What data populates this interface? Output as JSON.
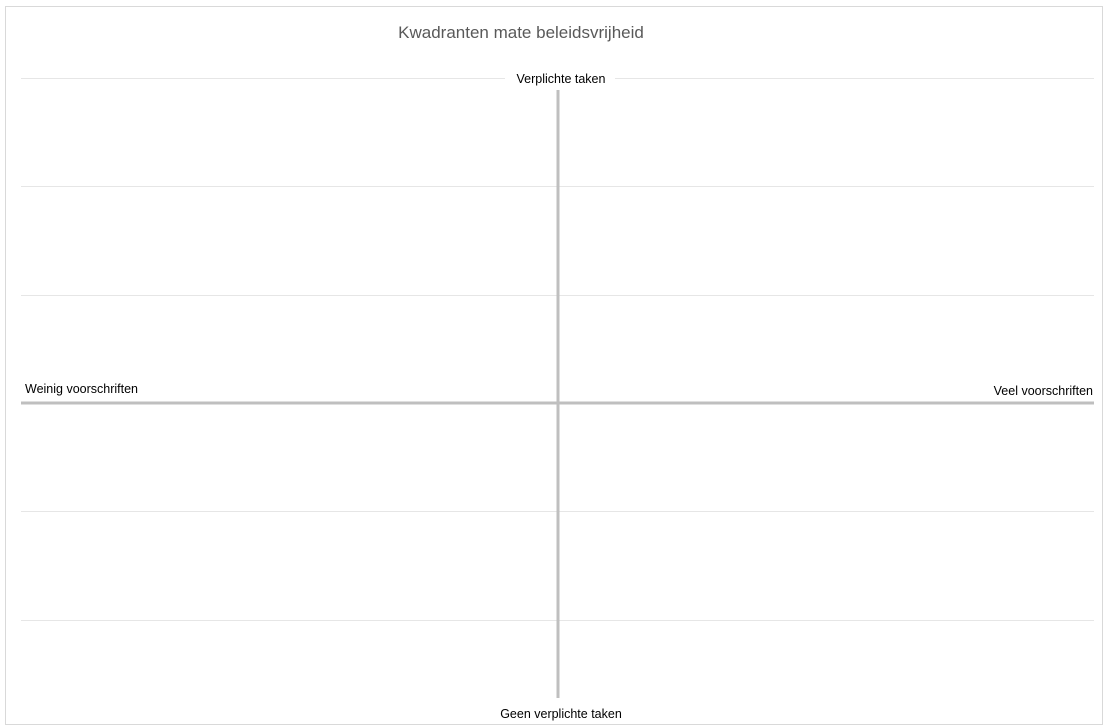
{
  "chart_data": {
    "type": "scatter",
    "title": "Kwadranten mate beleidsvrijheid",
    "labels": {
      "top": "Verplichte taken",
      "bottom": "Geen verplichte taken",
      "left": "Weinig voorschriften",
      "right": "Veel voorschriften"
    },
    "xlim": [
      -1,
      1
    ],
    "ylim": [
      -1,
      1
    ],
    "grid": true,
    "series": [],
    "colors": {
      "gridline": "#e6e6e6",
      "axis": "#bfbfbf",
      "frame": "#d9d9d9"
    }
  }
}
